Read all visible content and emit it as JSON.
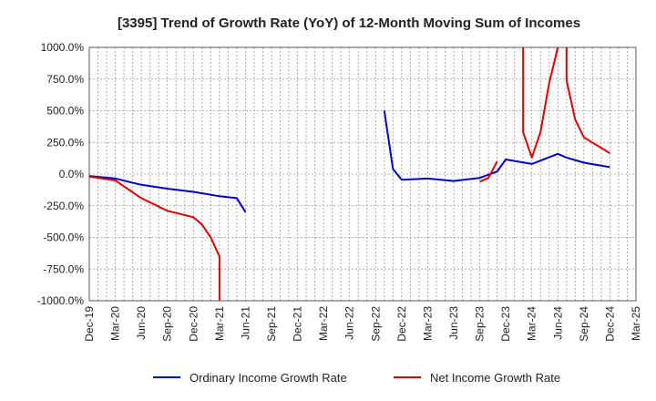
{
  "chart_data": {
    "type": "line",
    "title": "[3395]  Trend of Growth Rate (YoY) of 12-Month Moving Sum of Incomes",
    "xlabel": "",
    "ylabel": "",
    "ylim": [
      -1000,
      1000
    ],
    "y_ticks": [
      1000,
      750,
      500,
      250,
      0,
      -250,
      -500,
      -750,
      -1000
    ],
    "y_tick_labels": [
      "1000.0%",
      "750.0%",
      "500.0%",
      "250.0%",
      "0.0%",
      "-250.0%",
      "-500.0%",
      "-750.0%",
      "-1000.0%"
    ],
    "x_labels": [
      "Dec-19",
      "Mar-20",
      "Jun-20",
      "Sep-20",
      "Dec-20",
      "Mar-21",
      "Jun-21",
      "Sep-21",
      "Dec-21",
      "Mar-22",
      "Jun-22",
      "Sep-22",
      "Dec-22",
      "Mar-23",
      "Jun-23",
      "Sep-23",
      "Dec-23",
      "Mar-24",
      "Jun-24",
      "Sep-24",
      "Dec-24",
      "Mar-25"
    ],
    "x_months": [
      "2019-12",
      "2020-01",
      "2020-02",
      "2020-03",
      "2020-04",
      "2020-05",
      "2020-06",
      "2020-07",
      "2020-08",
      "2020-09",
      "2020-10",
      "2020-11",
      "2020-12",
      "2021-01",
      "2021-02",
      "2021-03",
      "2021-04",
      "2021-05",
      "2021-06",
      "2021-07",
      "2021-08",
      "2021-09",
      "2021-10",
      "2021-11",
      "2021-12",
      "2022-01",
      "2022-02",
      "2022-03",
      "2022-04",
      "2022-05",
      "2022-06",
      "2022-07",
      "2022-08",
      "2022-09",
      "2022-10",
      "2022-11",
      "2022-12",
      "2023-01",
      "2023-02",
      "2023-03",
      "2023-04",
      "2023-05",
      "2023-06",
      "2023-07",
      "2023-08",
      "2023-09",
      "2023-10",
      "2023-11",
      "2023-12",
      "2024-01",
      "2024-02",
      "2024-03",
      "2024-04",
      "2024-05",
      "2024-06",
      "2024-07",
      "2024-08",
      "2024-09",
      "2024-10",
      "2024-11",
      "2024-12",
      "2025-01",
      "2025-02",
      "2025-03"
    ],
    "grid": true,
    "legend_position": "bottom",
    "series": [
      {
        "name": "Ordinary Income Growth Rate",
        "color": "#0000cc",
        "points": [
          [
            "2019-12",
            -15
          ],
          [
            "2020-03",
            -35
          ],
          [
            "2020-06",
            -85
          ],
          [
            "2020-09",
            -115
          ],
          [
            "2020-12",
            -140
          ],
          [
            "2021-03",
            -175
          ],
          [
            "2021-05",
            -190
          ],
          [
            "2021-06",
            -300
          ],
          null,
          [
            "2022-10",
            500
          ],
          [
            "2022-11",
            40
          ],
          [
            "2022-12",
            -45
          ],
          [
            "2023-03",
            -35
          ],
          [
            "2023-06",
            -55
          ],
          [
            "2023-09",
            -30
          ],
          [
            "2023-11",
            20
          ],
          [
            "2023-12",
            115
          ],
          [
            "2024-03",
            80
          ],
          [
            "2024-06",
            160
          ],
          [
            "2024-07",
            130
          ],
          [
            "2024-09",
            90
          ],
          [
            "2024-12",
            55
          ]
        ]
      },
      {
        "name": "Net Income Growth Rate",
        "color": "#dd0000",
        "points": [
          [
            "2019-12",
            -20
          ],
          [
            "2020-03",
            -50
          ],
          [
            "2020-06",
            -190
          ],
          [
            "2020-09",
            -290
          ],
          [
            "2020-12",
            -340
          ],
          [
            "2021-01",
            -400
          ],
          [
            "2021-02",
            -500
          ],
          [
            "2021-03",
            -650
          ],
          [
            "2021-03",
            -1000
          ],
          null,
          [
            "2023-09",
            -60
          ],
          [
            "2023-10",
            -30
          ],
          [
            "2023-11",
            100
          ],
          null,
          [
            "2024-02",
            1000
          ],
          [
            "2024-02",
            330
          ],
          [
            "2024-03",
            130
          ],
          [
            "2024-04",
            330
          ],
          [
            "2024-05",
            720
          ],
          [
            "2024-06",
            1000
          ],
          null,
          [
            "2024-07",
            1000
          ],
          [
            "2024-07",
            740
          ],
          [
            "2024-08",
            430
          ],
          [
            "2024-09",
            290
          ],
          [
            "2024-12",
            165
          ]
        ]
      }
    ]
  }
}
